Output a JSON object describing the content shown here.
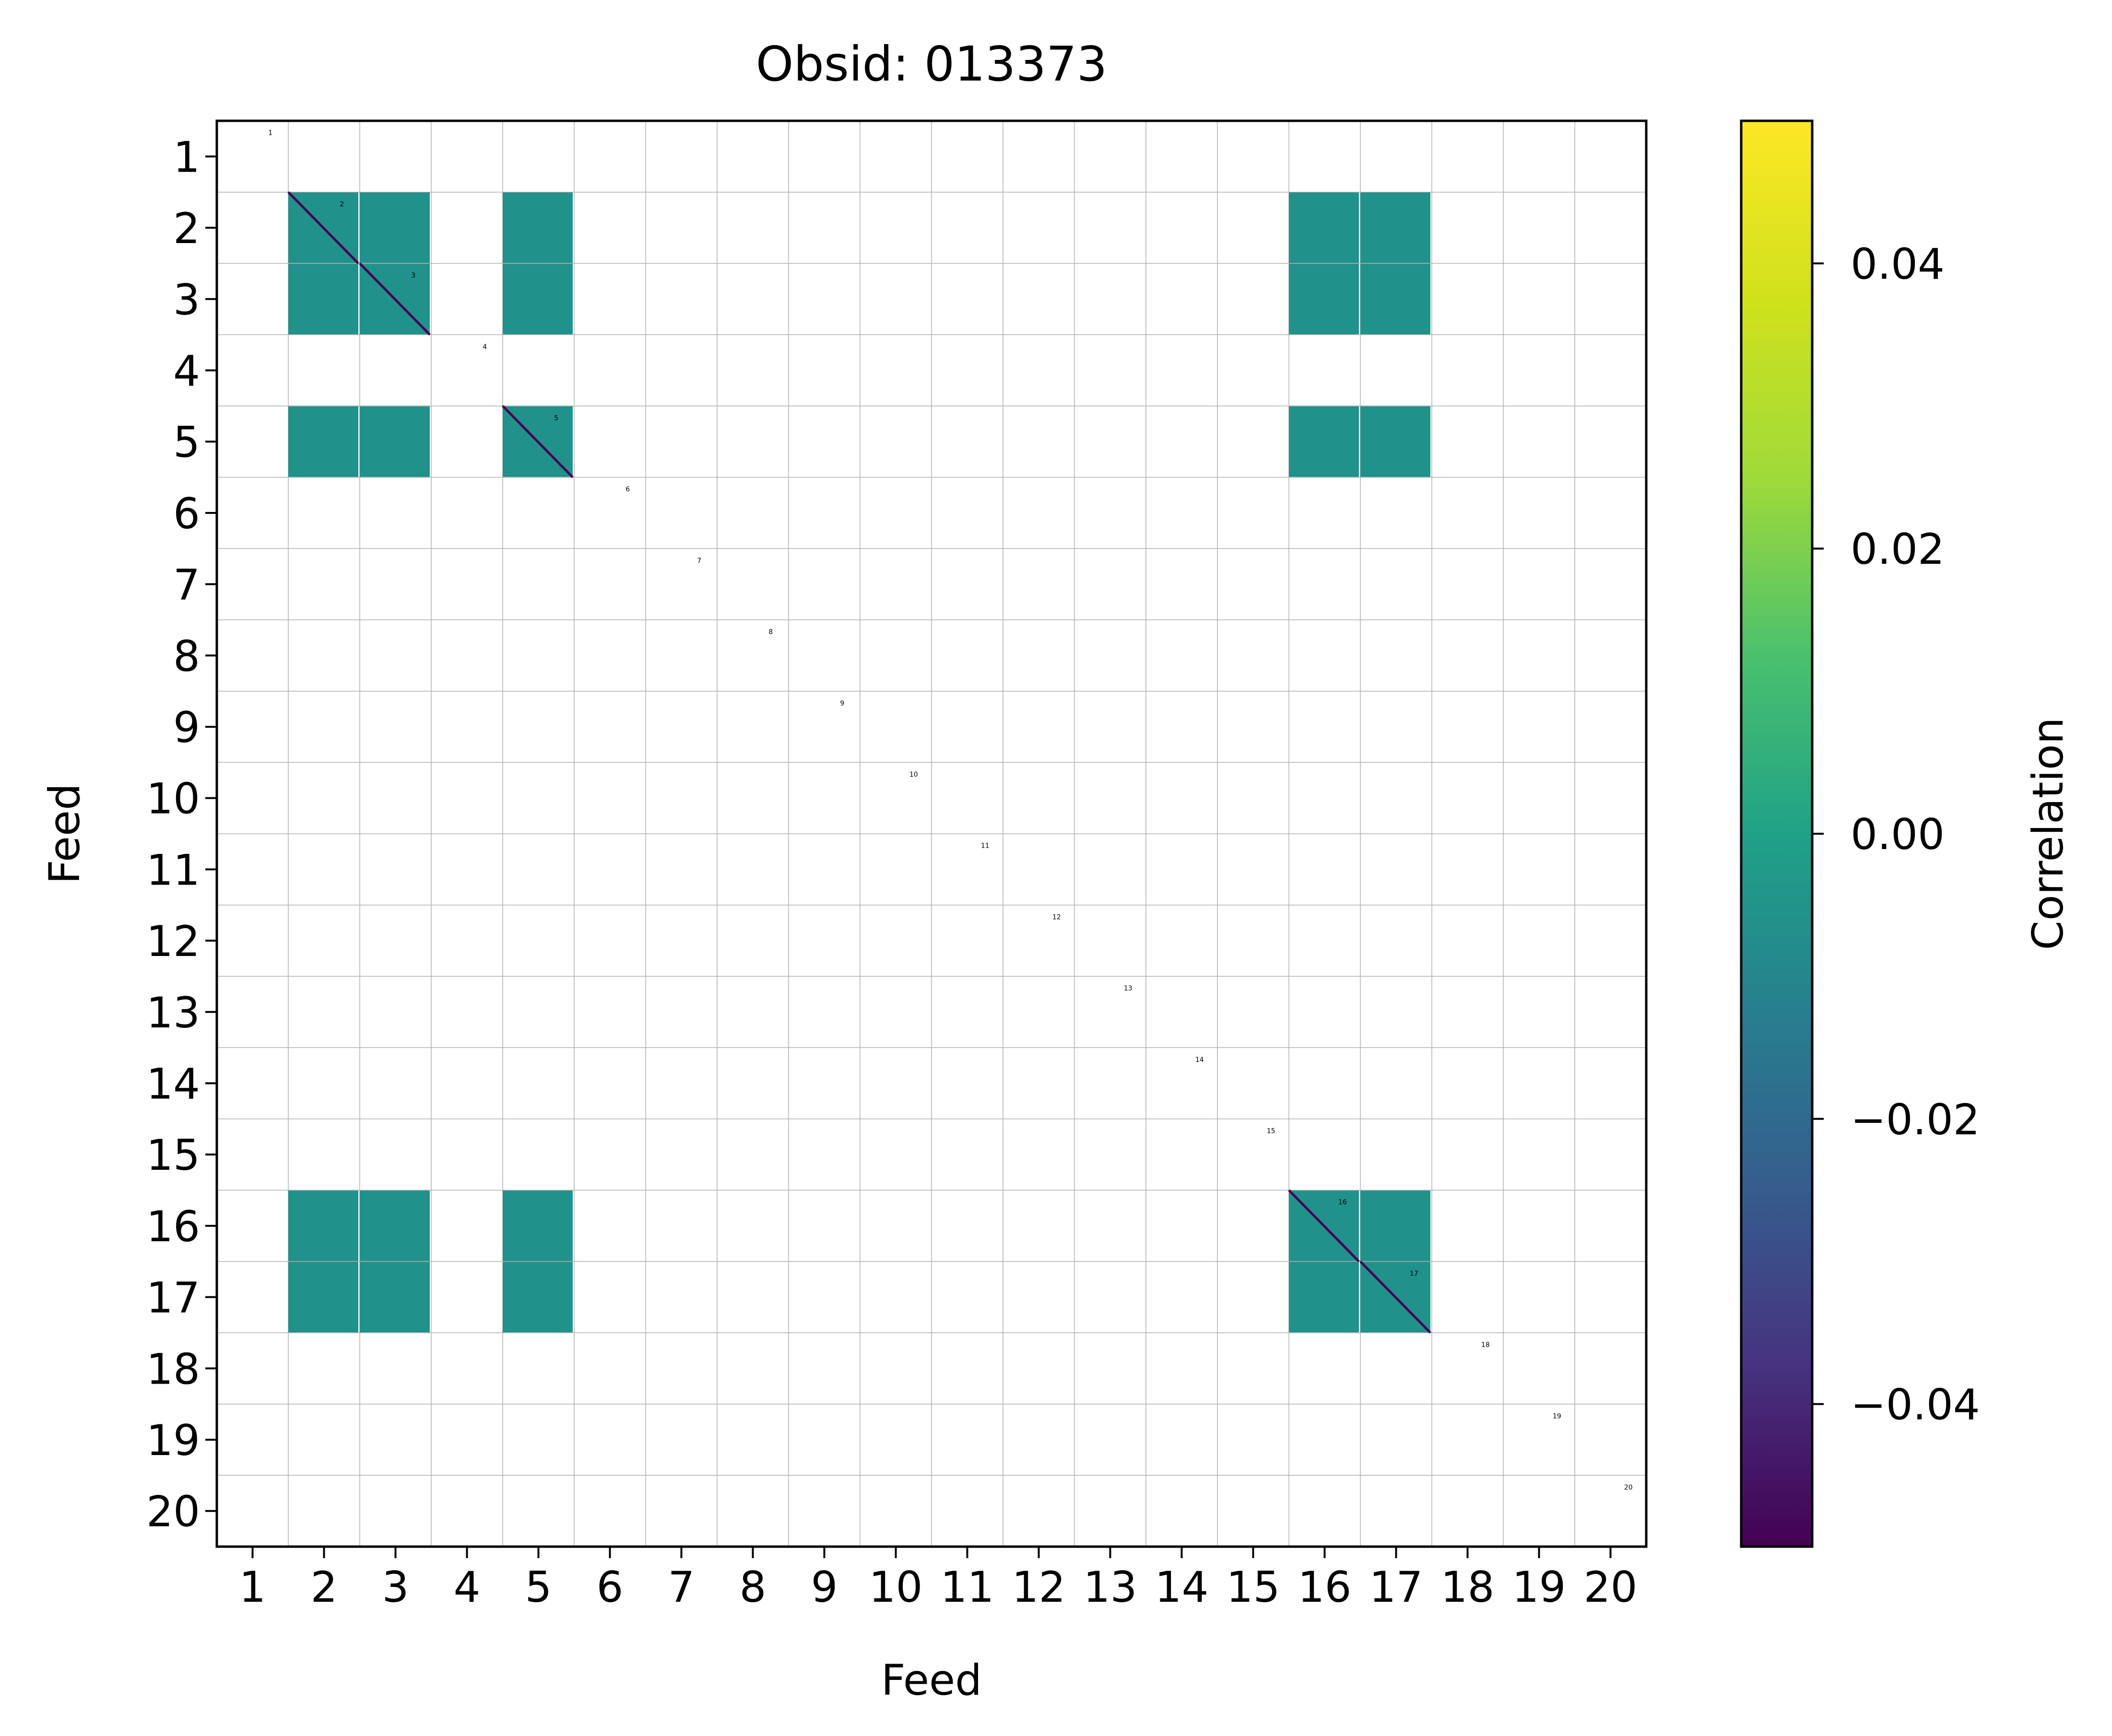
{
  "chart_data": {
    "type": "heatmap",
    "title": "Obsid: 013373",
    "xlabel": "Feed",
    "ylabel": "Feed",
    "x_ticks": [
      "1",
      "2",
      "3",
      "4",
      "5",
      "6",
      "7",
      "8",
      "9",
      "10",
      "11",
      "12",
      "13",
      "14",
      "15",
      "16",
      "17",
      "18",
      "19",
      "20"
    ],
    "y_ticks": [
      "1",
      "2",
      "3",
      "4",
      "5",
      "6",
      "7",
      "8",
      "9",
      "10",
      "11",
      "12",
      "13",
      "14",
      "15",
      "16",
      "17",
      "18",
      "19",
      "20"
    ],
    "feed_annotations": [
      "1",
      "2",
      "3",
      "4",
      "5",
      "6",
      "7",
      "8",
      "9",
      "10",
      "11",
      "12",
      "13",
      "14",
      "15",
      "16",
      "17",
      "18",
      "19",
      "20"
    ],
    "grid": true,
    "colorbar": {
      "label": "Correlation",
      "colormap": "viridis",
      "vmin": -0.05,
      "vmax": 0.05,
      "ticks": [
        0.04,
        0.02,
        0.0,
        -0.02,
        -0.04
      ],
      "tick_labels": [
        "0.04",
        "0.02",
        "0.00",
        "−0.02",
        "−0.04"
      ]
    },
    "active_feeds": [
      2,
      3,
      5,
      16,
      17
    ],
    "block_value": 0.0,
    "diagonal_value": -0.05,
    "colors": {
      "block": "#21918c",
      "diagonal": "#440154",
      "grid": "#b0b0b0",
      "axes": "#000000"
    }
  }
}
